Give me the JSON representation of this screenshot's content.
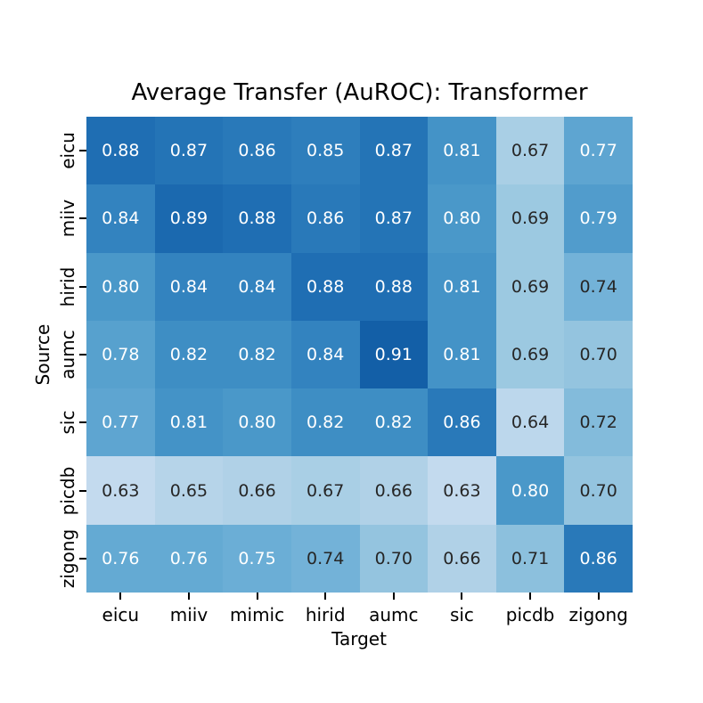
{
  "chart_data": {
    "type": "heatmap",
    "title": "Average Transfer (AuROC): Transformer",
    "xlabel": "Target",
    "ylabel": "Source",
    "x_categories": [
      "eicu",
      "miiv",
      "mimic",
      "hirid",
      "aumc",
      "sic",
      "picdb",
      "zigong"
    ],
    "y_categories": [
      "eicu",
      "miiv",
      "hirid",
      "aumc",
      "sic",
      "picdb",
      "zigong"
    ],
    "values": [
      [
        0.88,
        0.87,
        0.86,
        0.85,
        0.87,
        0.81,
        0.67,
        0.77
      ],
      [
        0.84,
        0.89,
        0.88,
        0.86,
        0.87,
        0.8,
        0.69,
        0.79
      ],
      [
        0.8,
        0.84,
        0.84,
        0.88,
        0.88,
        0.81,
        0.69,
        0.74
      ],
      [
        0.78,
        0.82,
        0.82,
        0.84,
        0.91,
        0.81,
        0.69,
        0.7
      ],
      [
        0.77,
        0.81,
        0.8,
        0.82,
        0.82,
        0.86,
        0.64,
        0.72
      ],
      [
        0.63,
        0.65,
        0.66,
        0.67,
        0.66,
        0.63,
        0.8,
        0.7
      ],
      [
        0.76,
        0.76,
        0.75,
        0.74,
        0.7,
        0.66,
        0.71,
        0.86
      ]
    ],
    "value_decimals": 2,
    "colormap": "Blues",
    "vmin": 0.5,
    "vmax": 1.0,
    "annotation_white_threshold": 0.75,
    "colors": {
      "annotation_on_dark": "#ffffff",
      "annotation_on_light": "#262626",
      "axis_text": "#000000",
      "background": "#ffffff"
    },
    "legend": "none",
    "grid": "off"
  }
}
